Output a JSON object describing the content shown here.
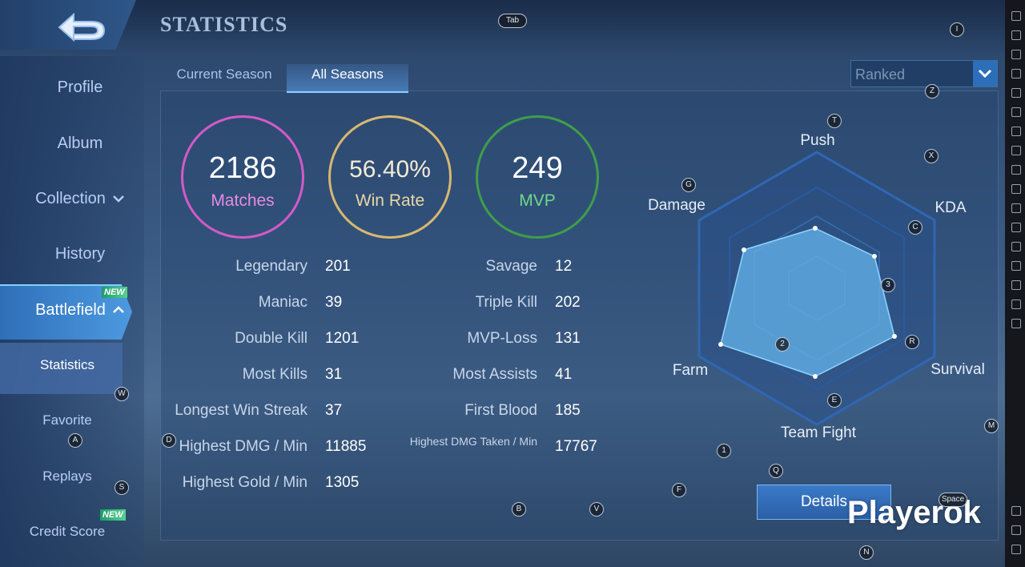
{
  "header": {
    "title": "STATISTICS",
    "tab_hint": "Tab"
  },
  "sidebar": {
    "items": [
      {
        "label": "Profile"
      },
      {
        "label": "Album"
      },
      {
        "label": "Collection"
      },
      {
        "label": "History"
      },
      {
        "label": "Battlefield",
        "badge": "NEW"
      },
      {
        "label": "Statistics"
      },
      {
        "label": "Favorite"
      },
      {
        "label": "Replays"
      },
      {
        "label": "Credit Score",
        "badge": "NEW"
      }
    ]
  },
  "tabs": [
    "Current Season",
    "All Seasons"
  ],
  "mode_select": "Ranked",
  "summary": [
    {
      "value": 2186,
      "label": "Matches"
    },
    {
      "value": "56.40%",
      "label": "Win Rate"
    },
    {
      "value": 249,
      "label": "MVP"
    }
  ],
  "stats_left": [
    {
      "label": "Legendary",
      "value": 201
    },
    {
      "label": "Maniac",
      "value": 39
    },
    {
      "label": "Double Kill",
      "value": 1201
    },
    {
      "label": "Most Kills",
      "value": 31
    },
    {
      "label": "Longest Win Streak",
      "value": 37
    },
    {
      "label": "Highest DMG / Min",
      "value": 11885
    },
    {
      "label": "Highest Gold / Min",
      "value": 1305
    }
  ],
  "stats_right": [
    {
      "label": "Savage",
      "value": 12
    },
    {
      "label": "Triple Kill",
      "value": 202
    },
    {
      "label": "MVP-Loss",
      "value": 131
    },
    {
      "label": "Most Assists",
      "value": 41
    },
    {
      "label": "First Blood",
      "value": 185
    },
    {
      "label": "Highest DMG Taken / Min",
      "value": 17767
    }
  ],
  "radar": {
    "labels": [
      "Push",
      "KDA",
      "Survival",
      "Team Fight",
      "Farm",
      "Damage"
    ]
  },
  "details_button": "Details",
  "watermark": "Playerok",
  "key_hints": [
    "I",
    "Z",
    "T",
    "X",
    "G",
    "C",
    "3",
    "R",
    "2",
    "E",
    "1",
    "Q",
    "F",
    "M",
    "D",
    "W",
    "A",
    "S",
    "B",
    "V",
    "N",
    "Space"
  ]
}
